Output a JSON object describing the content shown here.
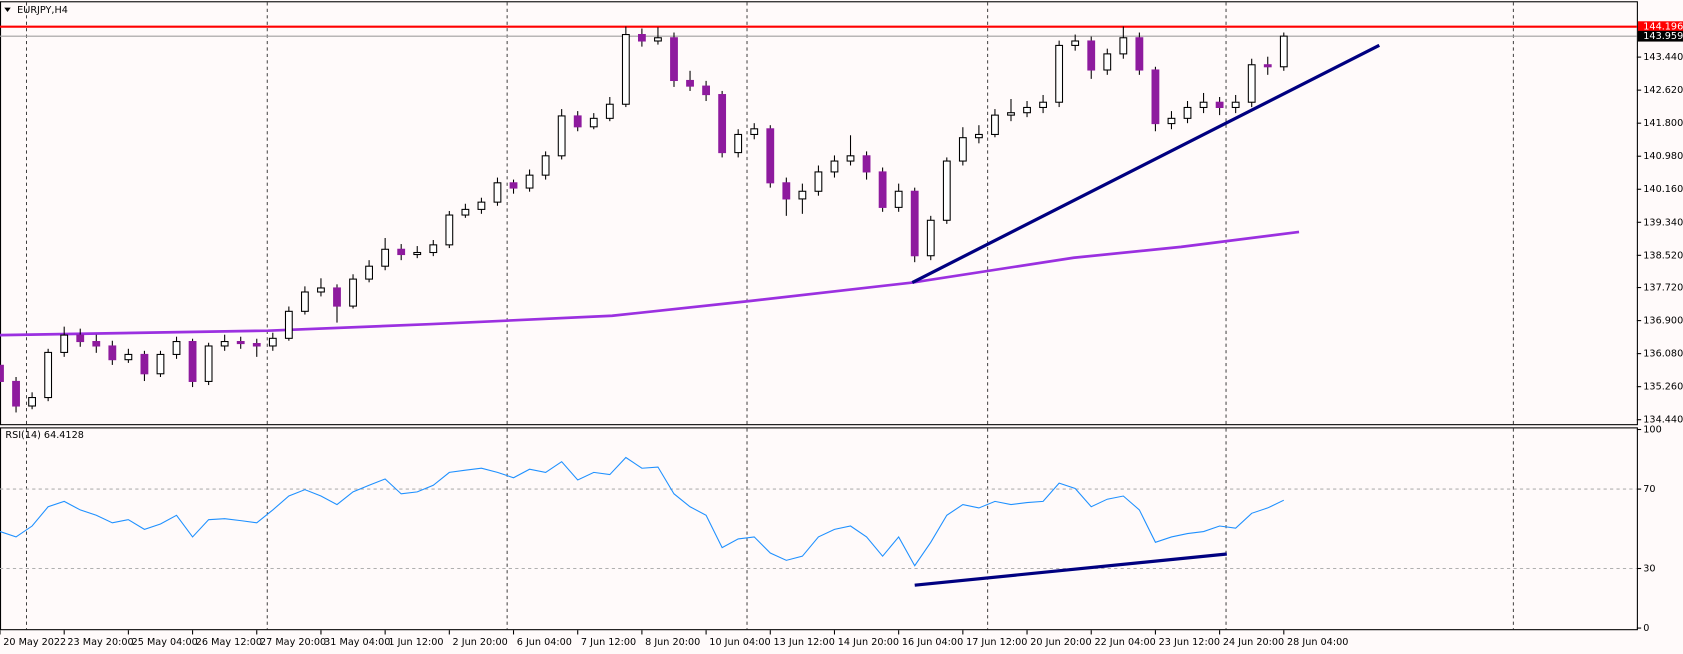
{
  "chart_data": [
    {
      "type": "candlestick",
      "title": "EURJPY,H4",
      "ylim": [
        134.33,
        144.8
      ],
      "yticks": [
        {
          "value": 143.44,
          "label": "143.440"
        },
        {
          "value": 142.62,
          "label": "142.620"
        },
        {
          "value": 141.8,
          "label": "141.800"
        },
        {
          "value": 140.98,
          "label": "140.980"
        },
        {
          "value": 140.16,
          "label": "140.160"
        },
        {
          "value": 139.34,
          "label": "139.340"
        },
        {
          "value": 138.52,
          "label": "138.520"
        },
        {
          "value": 137.72,
          "label": "137.720"
        },
        {
          "value": 136.9,
          "label": "136.900"
        },
        {
          "value": 136.08,
          "label": "136.080"
        },
        {
          "value": 135.26,
          "label": "135.260"
        },
        {
          "value": 134.44,
          "label": "134.440"
        }
      ],
      "xlim": [
        0,
        204
      ],
      "xticks": [
        {
          "value": 0,
          "label": "20 May 2022"
        },
        {
          "value": 8,
          "label": "23 May 20:00"
        },
        {
          "value": 16,
          "label": "25 May 04:00"
        },
        {
          "value": 24,
          "label": "26 May 12:00"
        },
        {
          "value": 32,
          "label": "27 May 20:00"
        },
        {
          "value": 40,
          "label": "31 May 04:00"
        },
        {
          "value": 48,
          "label": "1 Jun 12:00"
        },
        {
          "value": 56,
          "label": "2 Jun 20:00"
        },
        {
          "value": 64,
          "label": "6 Jun 04:00"
        },
        {
          "value": 72,
          "label": "7 Jun 12:00"
        },
        {
          "value": 80,
          "label": "8 Jun 20:00"
        },
        {
          "value": 88,
          "label": "10 Jun 04:00"
        },
        {
          "value": 96,
          "label": "13 Jun 12:00"
        },
        {
          "value": 104,
          "label": "14 Jun 20:00"
        },
        {
          "value": 112,
          "label": "16 Jun 04:00"
        },
        {
          "value": 120,
          "label": "17 Jun 12:00"
        },
        {
          "value": 128,
          "label": "20 Jun 20:00"
        },
        {
          "value": 136,
          "label": "22 Jun 04:00"
        },
        {
          "value": 144,
          "label": "23 Jun 12:00"
        },
        {
          "value": 152,
          "label": "24 Jun 20:00"
        },
        {
          "value": 160,
          "label": "28 Jun 04:00"
        }
      ],
      "xgrid": [
        3.3,
        33.3,
        63.2,
        93.1,
        123.1,
        152.8,
        188.6
      ],
      "up_color": "#ffffff",
      "down_color": "#8e1b9e",
      "x": [
        0,
        2,
        4,
        6,
        8,
        10,
        12,
        14,
        16,
        18,
        20,
        22,
        24,
        26,
        28,
        30,
        32,
        34,
        36,
        38,
        40,
        42,
        44,
        46,
        48,
        50,
        52,
        54,
        56,
        58,
        60,
        62,
        64,
        66,
        68,
        70,
        72,
        74,
        76,
        78,
        80,
        82,
        84,
        86,
        88,
        90,
        92,
        94,
        96,
        98,
        100,
        102,
        104,
        106,
        108,
        110,
        112,
        114,
        116,
        118,
        120,
        122,
        124,
        126,
        128,
        130,
        132,
        134,
        136,
        138,
        140,
        142,
        144,
        146,
        148,
        150,
        152,
        154,
        156,
        158,
        160
      ],
      "candles": [
        [
          135.79,
          135.95,
          135.2,
          135.39
        ],
        [
          135.39,
          135.5,
          134.62,
          134.78
        ],
        [
          134.78,
          135.12,
          134.7,
          134.99
        ],
        [
          134.99,
          136.2,
          134.9,
          136.11
        ],
        [
          136.11,
          136.75,
          136.0,
          136.54
        ],
        [
          136.54,
          136.7,
          136.25,
          136.38
        ],
        [
          136.38,
          136.55,
          136.1,
          136.27
        ],
        [
          136.27,
          136.4,
          135.8,
          135.93
        ],
        [
          135.93,
          136.2,
          135.85,
          136.06
        ],
        [
          136.06,
          136.15,
          135.4,
          135.58
        ],
        [
          135.58,
          136.15,
          135.5,
          136.06
        ],
        [
          136.06,
          136.5,
          135.95,
          136.38
        ],
        [
          136.38,
          136.45,
          135.25,
          135.39
        ],
        [
          135.39,
          136.35,
          135.3,
          136.27
        ],
        [
          136.27,
          136.55,
          136.15,
          136.38
        ],
        [
          136.38,
          136.5,
          136.2,
          136.33
        ],
        [
          136.33,
          136.45,
          136.0,
          136.27
        ],
        [
          136.27,
          136.6,
          136.15,
          136.46
        ],
        [
          136.46,
          137.25,
          136.4,
          137.13
        ],
        [
          137.13,
          137.75,
          137.05,
          137.61
        ],
        [
          137.61,
          137.95,
          137.5,
          137.71
        ],
        [
          137.71,
          137.8,
          136.85,
          137.26
        ],
        [
          137.26,
          138.05,
          137.2,
          137.93
        ],
        [
          137.93,
          138.4,
          137.85,
          138.25
        ],
        [
          138.25,
          138.95,
          138.15,
          138.67
        ],
        [
          138.67,
          138.8,
          138.4,
          138.54
        ],
        [
          138.54,
          138.75,
          138.45,
          138.59
        ],
        [
          138.59,
          138.9,
          138.5,
          138.78
        ],
        [
          138.78,
          139.62,
          138.7,
          139.52
        ],
        [
          139.52,
          139.8,
          139.45,
          139.66
        ],
        [
          139.66,
          139.95,
          139.55,
          139.84
        ],
        [
          139.84,
          140.45,
          139.75,
          140.32
        ],
        [
          140.32,
          140.4,
          140.05,
          140.19
        ],
        [
          140.19,
          140.65,
          140.1,
          140.51
        ],
        [
          140.51,
          141.1,
          140.4,
          140.99
        ],
        [
          140.99,
          142.15,
          140.9,
          141.98
        ],
        [
          141.98,
          142.1,
          141.6,
          141.71
        ],
        [
          141.71,
          142.05,
          141.65,
          141.92
        ],
        [
          141.92,
          142.45,
          141.85,
          142.27
        ],
        [
          142.27,
          144.2,
          142.2,
          144.0
        ],
        [
          144.0,
          144.15,
          143.7,
          143.84
        ],
        [
          143.84,
          144.18,
          143.75,
          143.92
        ],
        [
          143.92,
          144.05,
          142.7,
          142.86
        ],
        [
          142.86,
          143.1,
          142.6,
          142.72
        ],
        [
          142.72,
          142.85,
          142.35,
          142.51
        ],
        [
          142.51,
          142.6,
          140.95,
          141.07
        ],
        [
          141.07,
          141.65,
          140.95,
          141.52
        ],
        [
          141.52,
          141.8,
          141.4,
          141.66
        ],
        [
          141.66,
          141.75,
          140.2,
          140.32
        ],
        [
          140.32,
          140.45,
          139.5,
          139.92
        ],
        [
          139.92,
          140.3,
          139.55,
          140.11
        ],
        [
          140.11,
          140.75,
          140.0,
          140.59
        ],
        [
          140.59,
          141.0,
          140.45,
          140.86
        ],
        [
          140.86,
          141.5,
          140.75,
          140.99
        ],
        [
          140.99,
          141.1,
          140.4,
          140.59
        ],
        [
          140.59,
          140.7,
          139.6,
          139.71
        ],
        [
          139.71,
          140.3,
          139.6,
          140.11
        ],
        [
          140.11,
          140.2,
          138.35,
          138.51
        ],
        [
          138.51,
          139.5,
          138.4,
          139.39
        ],
        [
          139.39,
          140.95,
          139.3,
          140.86
        ],
        [
          140.86,
          141.7,
          140.75,
          141.44
        ],
        [
          141.44,
          141.75,
          141.3,
          141.52
        ],
        [
          141.52,
          142.15,
          141.45,
          142.0
        ],
        [
          142.0,
          142.4,
          141.85,
          142.06
        ],
        [
          142.06,
          142.35,
          141.95,
          142.19
        ],
        [
          142.19,
          142.5,
          142.05,
          142.32
        ],
        [
          142.32,
          143.85,
          142.2,
          143.73
        ],
        [
          143.73,
          144.0,
          143.6,
          143.84
        ],
        [
          143.84,
          143.95,
          142.9,
          143.12
        ],
        [
          143.12,
          143.65,
          143.0,
          143.52
        ],
        [
          143.52,
          144.2,
          143.4,
          143.92
        ],
        [
          143.92,
          144.05,
          143.0,
          143.12
        ],
        [
          143.12,
          143.2,
          141.6,
          141.79
        ],
        [
          141.79,
          142.1,
          141.65,
          141.92
        ],
        [
          141.92,
          142.35,
          141.8,
          142.19
        ],
        [
          142.19,
          142.55,
          142.05,
          142.32
        ],
        [
          142.32,
          142.45,
          142.0,
          142.19
        ],
        [
          142.19,
          142.5,
          142.05,
          142.32
        ],
        [
          142.32,
          143.4,
          142.2,
          143.25
        ],
        [
          143.25,
          143.45,
          143.0,
          143.2
        ],
        [
          143.2,
          144.05,
          143.1,
          143.96
        ]
      ],
      "series": [
        {
          "color": "#9b30e0",
          "x": [
            0,
            33.4,
            53.5,
            76.3,
            93.6,
            113.7,
            133.8,
            147.2,
            161.9
          ],
          "values": [
            136.54,
            136.65,
            136.81,
            137.02,
            137.39,
            137.845,
            138.46,
            138.73,
            139.1
          ]
        }
      ],
      "trendlines": [
        {
          "color": "#000080",
          "x": [
            113.7,
            171.9
          ],
          "values": [
            137.845,
            143.734
          ]
        }
      ],
      "resistance": {
        "value": 144.196,
        "color": "#ff0000"
      },
      "bid": {
        "value": 143.959,
        "color": "#a0a0a0"
      }
    },
    {
      "type": "line",
      "title": "RSI(14) 64.4128",
      "ylim": [
        0,
        100
      ],
      "yticks": [
        100,
        70,
        30,
        0
      ],
      "levels": [
        70,
        30
      ],
      "color": "#1e90ff",
      "values": [
        48.6,
        45.9,
        51.4,
        61.1,
        63.8,
        59.5,
        56.8,
        53.0,
        54.6,
        49.7,
        52.4,
        56.8,
        45.9,
        54.6,
        55.1,
        54.1,
        53.0,
        59.5,
        66.5,
        69.7,
        66.5,
        62.2,
        68.6,
        71.9,
        75.1,
        67.6,
        68.6,
        71.9,
        78.4,
        79.5,
        80.5,
        78.4,
        75.7,
        80.0,
        78.4,
        83.8,
        74.6,
        78.4,
        77.3,
        85.9,
        80.5,
        81.1,
        67.6,
        61.1,
        56.8,
        40.5,
        44.9,
        45.9,
        37.8,
        34.1,
        36.2,
        45.9,
        49.7,
        51.4,
        45.9,
        36.2,
        45.9,
        31.4,
        43.2,
        56.8,
        62.2,
        60.5,
        63.8,
        62.2,
        63.2,
        63.8,
        73.0,
        70.3,
        61.1,
        64.9,
        66.5,
        59.5,
        43.2,
        45.9,
        47.6,
        48.6,
        51.4,
        50.3,
        57.8,
        60.5,
        64.41
      ],
      "trendlines": [
        {
          "color": "#000080",
          "x": [
            114,
            152.9
          ],
          "values": [
            21.6,
            37.3
          ]
        }
      ]
    }
  ]
}
